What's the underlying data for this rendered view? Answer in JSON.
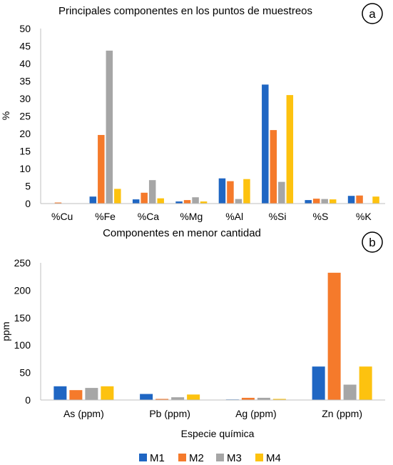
{
  "colors": {
    "M1": "#1f66c3",
    "M2": "#f57a2b",
    "M3": "#a6a6a6",
    "M4": "#fdc20f"
  },
  "legend": [
    "M1",
    "M2",
    "M3",
    "M4"
  ],
  "chart_data": [
    {
      "type": "bar",
      "badge": "a",
      "title": "Principales componentes en los puntos de muestreos",
      "ylabel": "%",
      "xlabel": "",
      "ylim": [
        0,
        50
      ],
      "yticks": [
        0,
        5,
        10,
        15,
        20,
        25,
        30,
        35,
        40,
        45,
        50
      ],
      "categories": [
        "%Cu",
        "%Fe",
        "%Ca",
        "%Mg",
        "%Al",
        "%Si",
        "%S",
        "%K"
      ],
      "series": [
        {
          "name": "M1",
          "values": [
            0,
            2.0,
            1.2,
            0.6,
            7.2,
            34.0,
            1.0,
            2.2
          ]
        },
        {
          "name": "M2",
          "values": [
            0.3,
            19.6,
            3.1,
            1.0,
            6.4,
            21.0,
            1.4,
            2.3
          ]
        },
        {
          "name": "M3",
          "values": [
            0,
            43.7,
            6.7,
            1.8,
            1.3,
            6.2,
            1.3,
            0
          ]
        },
        {
          "name": "M4",
          "values": [
            0,
            4.2,
            1.5,
            0.6,
            7.0,
            31.0,
            1.2,
            2.0
          ]
        }
      ],
      "grid": false
    },
    {
      "type": "bar",
      "badge": "b",
      "title": "Componentes en menor cantidad",
      "ylabel": "ppm",
      "xlabel": "Especie química",
      "ylim": [
        0,
        250
      ],
      "yticks": [
        0,
        50,
        100,
        150,
        200,
        250
      ],
      "categories": [
        "As (ppm)",
        "Pb (ppm)",
        "Ag (ppm)",
        "Zn (ppm)"
      ],
      "series": [
        {
          "name": "M1",
          "values": [
            25,
            11,
            1,
            61
          ]
        },
        {
          "name": "M2",
          "values": [
            18,
            2,
            4,
            232
          ]
        },
        {
          "name": "M3",
          "values": [
            22,
            5,
            4,
            28
          ]
        },
        {
          "name": "M4",
          "values": [
            25,
            10,
            2,
            61
          ]
        }
      ],
      "grid": false
    }
  ]
}
